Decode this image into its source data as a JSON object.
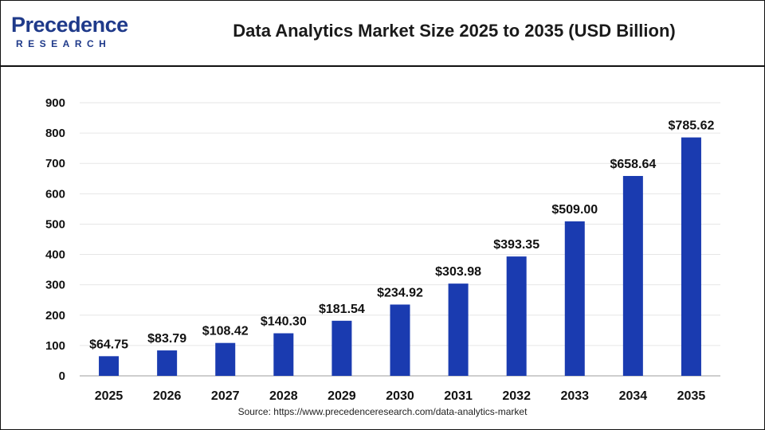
{
  "header": {
    "logo_main": "Precedence",
    "logo_sub": "RESEARCH",
    "title": "Data Analytics Market Size 2025 to 2035 (USD Billion)"
  },
  "footer": {
    "source": "Source: https://www.precedenceresearch.com/data-analytics-market"
  },
  "colors": {
    "bar": "#1a3bb0",
    "grid": "#e6e6e6",
    "brand": "#1f3a8a"
  },
  "chart_data": {
    "type": "bar",
    "categories": [
      "2025",
      "2026",
      "2027",
      "2028",
      "2029",
      "2030",
      "2031",
      "2032",
      "2033",
      "2034",
      "2035"
    ],
    "values": [
      64.75,
      83.79,
      108.42,
      140.3,
      181.54,
      234.92,
      303.98,
      393.35,
      509.0,
      658.64,
      785.62
    ],
    "data_labels": [
      "$64.75",
      "$83.79",
      "$108.42",
      "$140.30",
      "$181.54",
      "$234.92",
      "$303.98",
      "$393.35",
      "$509.00",
      "$658.64",
      "$785.62"
    ],
    "ylim": [
      0,
      900
    ],
    "yticks": [
      0,
      100,
      200,
      300,
      400,
      500,
      600,
      700,
      800,
      900
    ],
    "grid": true
  }
}
